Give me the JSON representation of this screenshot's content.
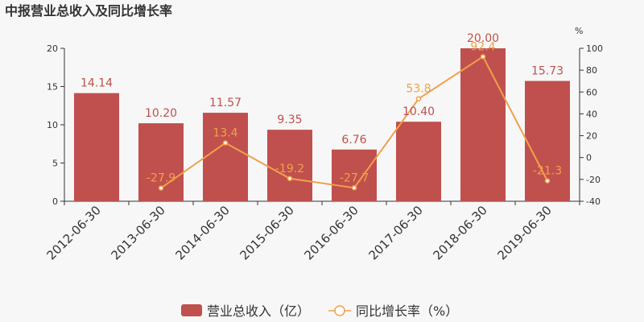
{
  "chart_data": {
    "type": "bar",
    "title": "中报营业总收入及同比增长率",
    "categories": [
      "2012-06-30",
      "2013-06-30",
      "2014-06-30",
      "2015-06-30",
      "2016-06-30",
      "2017-06-30",
      "2018-06-30",
      "2019-06-30"
    ],
    "series": [
      {
        "name": "营业总收入（亿）",
        "type": "bar",
        "axis": "left",
        "color": "#c0504d",
        "values": [
          14.14,
          10.2,
          11.57,
          9.35,
          6.76,
          10.4,
          20.0,
          15.73
        ],
        "labels": [
          "14.14",
          "10.20",
          "11.57",
          "9.35",
          "6.76",
          "10.40",
          "20.00",
          "15.73"
        ]
      },
      {
        "name": "同比增长率（%）",
        "type": "line",
        "axis": "right",
        "color": "#f0a04b",
        "values": [
          null,
          -27.9,
          13.4,
          -19.2,
          -27.7,
          53.8,
          92.4,
          -21.3
        ],
        "labels": [
          "",
          "-27.9",
          "13.4",
          "-19.2",
          "-27.7",
          "53.8",
          "92.4",
          "-21.3"
        ]
      }
    ],
    "y_left": {
      "ylim": [
        0,
        20
      ],
      "ticks": [
        "0",
        "5",
        "10",
        "15",
        "20"
      ]
    },
    "y_right": {
      "unit": "%",
      "ylim": [
        -40,
        100
      ],
      "ticks": [
        "-40",
        "-20",
        "0",
        "20",
        "40",
        "60",
        "80",
        "100"
      ]
    },
    "legend": {
      "placement": "bottom",
      "items": [
        "营业总收入（亿）",
        "同比增长率（%）"
      ]
    },
    "grid": false
  }
}
